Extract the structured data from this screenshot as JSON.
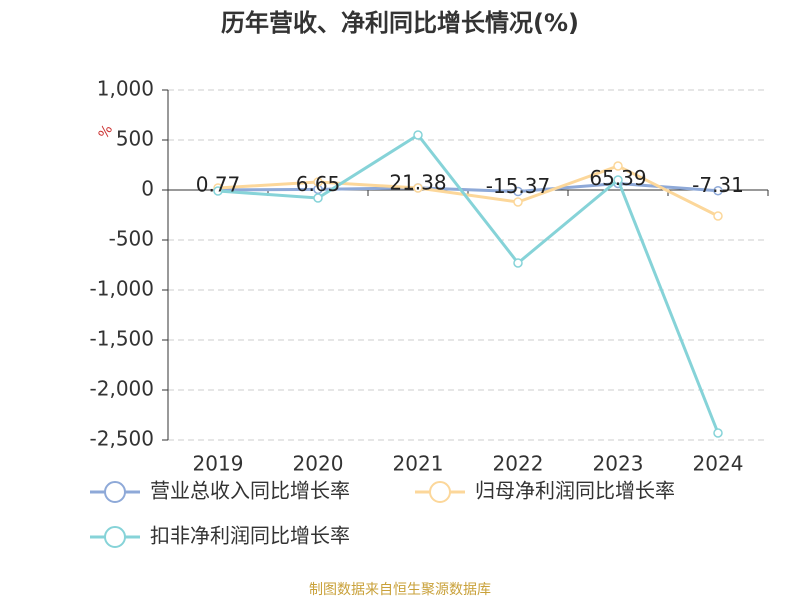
{
  "chart_data": {
    "type": "line",
    "title": "历年营收、净利同比增长情况(%)",
    "y_label": "%",
    "source": "制图数据来自恒生聚源数据库",
    "categories": [
      "2019",
      "2020",
      "2021",
      "2022",
      "2023",
      "2024"
    ],
    "series": [
      {
        "name": "营业总收入同比增长率",
        "color": "#8ea9d8",
        "values": [
          0.77,
          6.65,
          21.38,
          -15.37,
          65.39,
          -7.31
        ],
        "show_labels": true
      },
      {
        "name": "归母净利润同比增长率",
        "color": "#fcd79a",
        "values": [
          20,
          80,
          20,
          -120,
          240,
          -260
        ]
      },
      {
        "name": "扣非净利润同比增长率",
        "color": "#86d3d8",
        "values": [
          -10,
          -80,
          550,
          -730,
          100,
          -2430
        ]
      }
    ],
    "ylim": [
      -2500,
      1000
    ],
    "yticks": [
      {
        "value": -2500,
        "label": "-2,500"
      },
      {
        "value": -2000,
        "label": "-2,000"
      },
      {
        "value": -1500,
        "label": "-1,500"
      },
      {
        "value": -1000,
        "label": "-1,000"
      },
      -500,
      0,
      500,
      {
        "value": 1000,
        "label": "1,000"
      }
    ],
    "grid": true
  }
}
